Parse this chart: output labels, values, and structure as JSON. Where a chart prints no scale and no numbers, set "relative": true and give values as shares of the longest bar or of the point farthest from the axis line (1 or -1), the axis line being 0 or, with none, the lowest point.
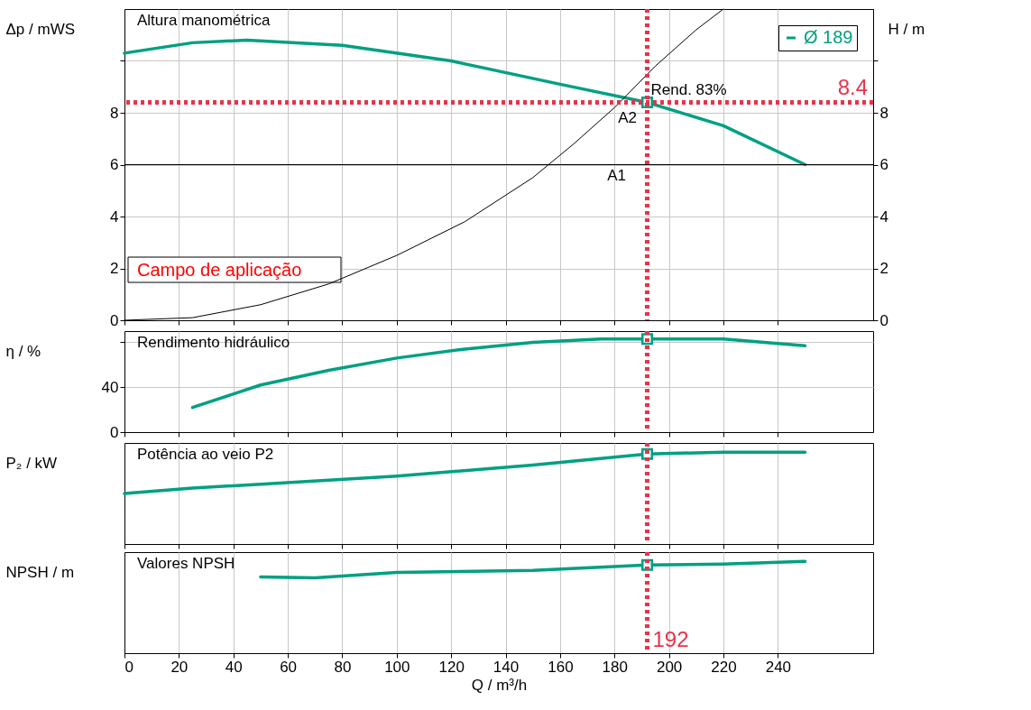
{
  "chart_data": [
    {
      "type": "line",
      "title": "Altura manométrica",
      "ylabel": "Δp / mWS",
      "y2label": "H / m",
      "xlim": [
        0,
        275
      ],
      "xticks": [
        0,
        20,
        40,
        60,
        80,
        100,
        120,
        140,
        160,
        180,
        200,
        220,
        240
      ],
      "ylim": [
        0,
        12
      ],
      "yticks": [
        0,
        2,
        4,
        6,
        8,
        {
          "value": 10,
          "label": null
        }
      ],
      "y2lim": [
        0,
        12
      ],
      "y2ticks": [
        0,
        2,
        4,
        6,
        8,
        {
          "value": 10,
          "label": null
        }
      ],
      "grid": true,
      "legend": "top right",
      "tick_labels": "y",
      "series": [
        {
          "name": "Ø 189",
          "color": "#00a082",
          "x": [
            0,
            25,
            45,
            80,
            120,
            160,
            192,
            220,
            250
          ],
          "values": [
            10.3,
            10.7,
            10.8,
            10.6,
            10.0,
            9.1,
            8.4,
            7.5,
            6.0
          ]
        },
        {
          "color": "#000000",
          "x": [
            0,
            25,
            50,
            75,
            100,
            125,
            150,
            165,
            180,
            195,
            210,
            220
          ],
          "values": [
            0,
            0.1,
            0.6,
            1.4,
            2.5,
            3.8,
            5.5,
            6.8,
            8.2,
            9.8,
            11.2,
            12
          ]
        },
        {
          "type": "scatter",
          "marker": "square",
          "color": "#00a082",
          "x": [
            192
          ],
          "values": [
            8.4
          ]
        }
      ],
      "ref_lines": [
        {
          "axis": "x",
          "value": 192,
          "color": "#e8334a",
          "line_style": "dotted"
        },
        {
          "axis": "y",
          "value": 8.4,
          "label": "8.4",
          "color": "#e8334a",
          "line_style": "dotted"
        },
        {
          "axis": "y",
          "value": 6,
          "color": "#000000"
        }
      ],
      "annotations": [
        {
          "text": "Rend.  83%",
          "x": 192,
          "y": 9.3
        },
        {
          "text": "A2",
          "x": 180,
          "y": 8.2
        },
        {
          "text": "A1",
          "x": 176,
          "y": 6
        },
        "Campo de aplicação"
      ]
    },
    {
      "type": "line",
      "title": "Rendimento hidráulico",
      "ylabel": "η / %",
      "xlim": [
        0,
        275
      ],
      "xticks": [
        0,
        20,
        40,
        60,
        80,
        100,
        120,
        140,
        160,
        180,
        200,
        220,
        240
      ],
      "ylim": [
        0,
        90
      ],
      "yticks": [
        0,
        40,
        {
          "value": 80,
          "label": null
        }
      ],
      "grid": true,
      "tick_labels": "y",
      "series": [
        {
          "color": "#00a082",
          "x": [
            25,
            50,
            75,
            100,
            125,
            150,
            175,
            192,
            220,
            250
          ],
          "values": [
            22,
            42,
            55,
            66,
            74,
            80,
            83,
            83,
            83,
            77
          ]
        },
        {
          "type": "scatter",
          "marker": "square",
          "color": "#00a082",
          "x": [
            192
          ],
          "values": [
            83
          ]
        }
      ],
      "ref_lines": [
        {
          "axis": "x",
          "value": 192,
          "color": "#e8334a",
          "line_style": "dotted"
        }
      ]
    },
    {
      "type": "line",
      "title": "Potência ao veio P2",
      "ylabel": "P₂ / kW",
      "relative": true,
      "xlim": [
        0,
        275
      ],
      "xticks": [
        0,
        20,
        40,
        60,
        80,
        100,
        120,
        140,
        160,
        180,
        200,
        220,
        240
      ],
      "grid": true,
      "tick_labels": false,
      "series": [
        {
          "color": "#00a082",
          "x": [
            0,
            25,
            50,
            100,
            150,
            192,
            220,
            250
          ],
          "values": [
            0.55,
            0.61,
            0.65,
            0.74,
            0.86,
            0.98,
            1,
            1
          ]
        },
        {
          "type": "scatter",
          "marker": "square",
          "color": "#00a082",
          "x": [
            192
          ],
          "values": [
            0.98
          ]
        }
      ],
      "ref_lines": [
        {
          "axis": "x",
          "value": 192,
          "color": "#e8334a",
          "line_style": "dotted"
        }
      ]
    },
    {
      "type": "line",
      "title": "Valores NPSH",
      "ylabel": "NPSH / m",
      "xlabel": "Q / m³/h",
      "relative": true,
      "xlim": [
        0,
        275
      ],
      "xticks": [
        0,
        20,
        40,
        60,
        80,
        100,
        120,
        140,
        160,
        180,
        200,
        220,
        240
      ],
      "grid": true,
      "tick_labels": "x",
      "series": [
        {
          "color": "#00a082",
          "x": [
            50,
            70,
            100,
            150,
            192,
            220,
            250
          ],
          "values": [
            0.83,
            0.82,
            0.88,
            0.9,
            0.96,
            0.97,
            1
          ]
        },
        {
          "type": "scatter",
          "marker": "square",
          "color": "#00a082",
          "x": [
            192
          ],
          "values": [
            0.96
          ]
        }
      ],
      "ref_lines": [
        {
          "axis": "x",
          "value": 192,
          "label": "192",
          "color": "#e8334a",
          "line_style": "dotted"
        }
      ]
    }
  ]
}
